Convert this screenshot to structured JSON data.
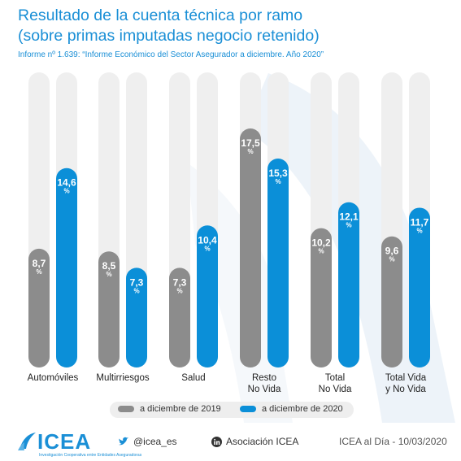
{
  "title_line1": "Resultado de la cuenta técnica por ramo",
  "title_line2": "(sobre primas imputadas negocio retenido)",
  "subtitle": "Informe nº 1.639: “Informe Económico del Sector Asegurador a diciembre. Año 2020”",
  "colors": {
    "accent": "#1a8fd6",
    "series2019": "#8c8c8c",
    "series2020": "#0b8fd8",
    "track": "#efefef"
  },
  "chart_data": {
    "type": "bar",
    "categories": [
      [
        "Automóviles"
      ],
      [
        "Multirriesgos"
      ],
      [
        "Salud"
      ],
      [
        "Resto",
        "No Vida"
      ],
      [
        "Total",
        "No Vida"
      ],
      [
        "Total Vida",
        "y No Vida"
      ]
    ],
    "series": [
      {
        "name": "a diciembre de 2019",
        "values": [
          8.7,
          8.5,
          7.3,
          17.5,
          10.2,
          9.6
        ],
        "labels": [
          "8,7",
          "8,5",
          "7,3",
          "17,5",
          "10,2",
          "9,6"
        ]
      },
      {
        "name": "a diciembre de 2020",
        "values": [
          14.6,
          7.3,
          10.4,
          15.3,
          12.1,
          11.7
        ],
        "labels": [
          "14,6",
          "7,3",
          "10,4",
          "15,3",
          "12,1",
          "11,7"
        ]
      }
    ],
    "unit": "%",
    "ylim": [
      0,
      20
    ],
    "grid": false,
    "legend_position": "bottom"
  },
  "legend": {
    "item1": "a diciembre de 2019",
    "item2": "a diciembre de 2020"
  },
  "footer": {
    "logo": "ICEA",
    "logo_tagline": "Investigación Cooperativa entre Entidades Aseguradoras",
    "twitter": "@icea_es",
    "linkedin": "Asociación ICEA",
    "date_text": "ICEA al Día - 10/03/2020"
  }
}
